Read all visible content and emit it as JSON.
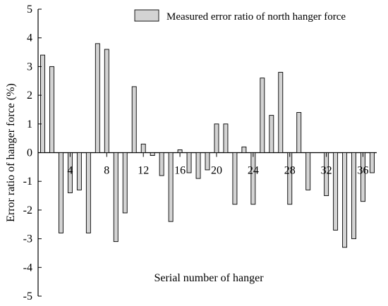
{
  "chart_data": {
    "type": "bar",
    "title": "",
    "xlabel": "Serial number of hanger",
    "ylabel": "Error ratio of hanger force (%)",
    "ylim": [
      -5,
      5
    ],
    "yticks": [
      -5,
      -4,
      -3,
      -2,
      -1,
      0,
      1,
      2,
      3,
      4,
      5
    ],
    "xtick_labels": [
      "4",
      "8",
      "12",
      "16",
      "20",
      "24",
      "28",
      "32",
      "36"
    ],
    "xtick_positions": [
      4,
      8,
      12,
      16,
      20,
      24,
      28,
      32,
      36
    ],
    "grid": false,
    "legend_position": "top-right",
    "categories": [
      1,
      2,
      3,
      4,
      5,
      6,
      7,
      8,
      9,
      10,
      11,
      12,
      13,
      14,
      15,
      16,
      17,
      18,
      19,
      20,
      21,
      22,
      23,
      24,
      25,
      26,
      27,
      28,
      29,
      30,
      31,
      32,
      33,
      34,
      35,
      36,
      37
    ],
    "series": [
      {
        "name": "Measured error ratio of north hanger force",
        "color": "#d3d3d3",
        "values": [
          3.4,
          3.0,
          -2.8,
          -1.4,
          -1.3,
          -2.8,
          3.8,
          3.6,
          -3.1,
          -2.1,
          2.3,
          0.3,
          -0.1,
          -0.8,
          -2.4,
          0.1,
          -0.7,
          -0.9,
          -0.6,
          1.0,
          1.0,
          -1.8,
          0.2,
          -1.8,
          2.6,
          1.3,
          2.8,
          -1.8,
          1.4,
          -1.3,
          0.0,
          -1.5,
          -2.7,
          -3.3,
          -3.0,
          -1.7,
          -0.7
        ]
      }
    ]
  }
}
